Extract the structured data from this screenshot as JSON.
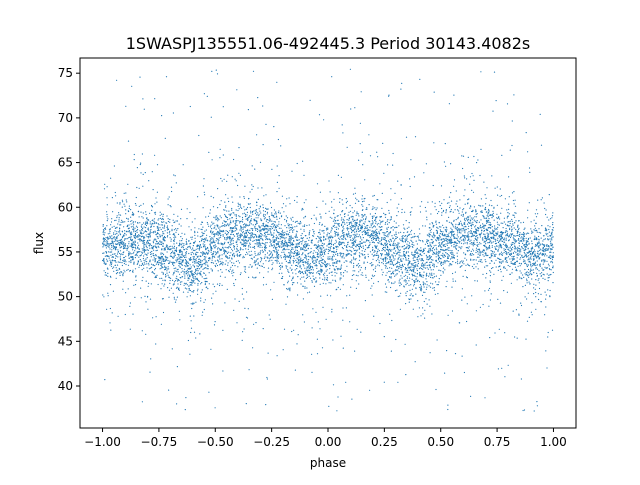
{
  "chart_data": {
    "type": "scatter",
    "title": "1SWASPJ135551.06-492445.3 Period 30143.4082s",
    "xlabel": "phase",
    "ylabel": "flux",
    "xlim": [
      -1.1,
      1.1
    ],
    "ylim": [
      35.3,
      76.7
    ],
    "x_ticks": [
      {
        "value": -1.0,
        "label": "−1.00"
      },
      {
        "value": -0.75,
        "label": "−0.75"
      },
      {
        "value": -0.5,
        "label": "−0.50"
      },
      {
        "value": -0.25,
        "label": "−0.25"
      },
      {
        "value": 0.0,
        "label": "0.00"
      },
      {
        "value": 0.25,
        "label": "0.25"
      },
      {
        "value": 0.5,
        "label": "0.50"
      },
      {
        "value": 0.75,
        "label": "0.75"
      },
      {
        "value": 1.0,
        "label": "1.00"
      }
    ],
    "y_ticks": [
      {
        "value": 40,
        "label": "40"
      },
      {
        "value": 45,
        "label": "45"
      },
      {
        "value": 50,
        "label": "50"
      },
      {
        "value": 55,
        "label": "55"
      },
      {
        "value": 60,
        "label": "60"
      },
      {
        "value": 65,
        "label": "65"
      },
      {
        "value": 70,
        "label": "70"
      },
      {
        "value": 75,
        "label": "75"
      }
    ],
    "grid": false,
    "legend": "none",
    "marker_color": "#1f77b4",
    "series": [
      {
        "phase_range": [
          -1.0,
          1.0
        ],
        "flux_range": [
          37.0,
          75.5
        ],
        "dense_band_flux_range": [
          50.0,
          62.0
        ],
        "mean_flux_profile": {
          "x": [
            -1.0,
            -0.9,
            -0.8,
            -0.7,
            -0.6,
            -0.5,
            -0.4,
            -0.3,
            -0.2,
            -0.1,
            0.0,
            0.1,
            0.2,
            0.3,
            0.4,
            0.5,
            0.6,
            0.7,
            0.8,
            0.9,
            1.0
          ],
          "y": [
            55.5,
            56.0,
            56.3,
            55.0,
            53.5,
            55.8,
            57.0,
            57.0,
            56.0,
            54.5,
            55.0,
            56.8,
            56.5,
            55.0,
            53.5,
            55.8,
            57.0,
            57.0,
            56.0,
            54.5,
            55.5
          ]
        }
      }
    ]
  }
}
